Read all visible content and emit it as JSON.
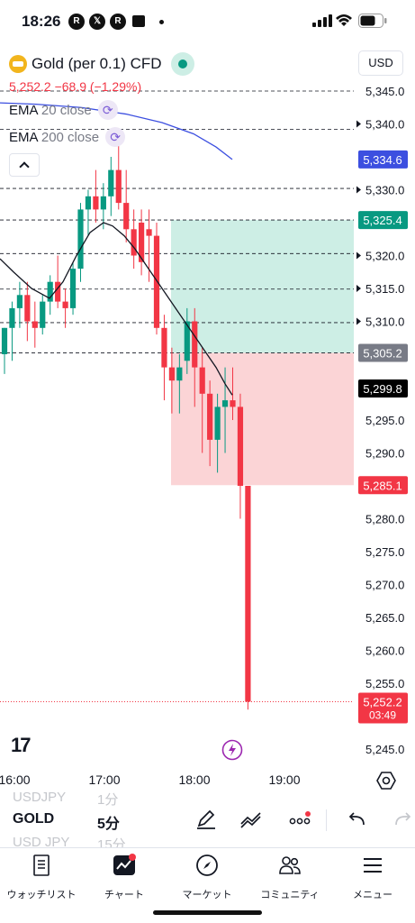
{
  "status_bar": {
    "time": "18:26",
    "icons": [
      "r-app-icon",
      "x-icon",
      "r-app-icon",
      "notification-icon"
    ],
    "right_icons": [
      "signal-icon",
      "wifi-icon",
      "battery-icon"
    ]
  },
  "chart": {
    "symbol_name": "Gold (per 0.1) CFD",
    "price_text": "5,252.2  −68.9 (−1.29%)",
    "currency": "USD",
    "indicators": [
      {
        "name": "EMA",
        "params": "20 close"
      },
      {
        "name": "EMA",
        "params": "200 close"
      }
    ],
    "price_axis": [
      "5,345.0",
      "5,340.0",
      "5,335.0",
      "5,330.0",
      "5,325.0",
      "5,320.0",
      "5,315.0",
      "5,310.0",
      "5,305.0",
      "5,300.0",
      "5,295.0",
      "5,290.0",
      "5,285.0",
      "5,280.0",
      "5,275.0",
      "5,270.0",
      "5,265.0",
      "5,260.0",
      "5,255.0",
      "5,250.0",
      "5,245.0"
    ],
    "price_tags": [
      {
        "label": "5,334.6",
        "color": "#3c4fe0"
      },
      {
        "label": "5,325.4",
        "color": "#089981"
      },
      {
        "label": "5,305.2",
        "color": "#787b86"
      },
      {
        "label": "5,299.8",
        "color": "#000000"
      },
      {
        "label": "5,285.1",
        "color": "#f23645"
      },
      {
        "label": "5,252.2",
        "sub": "03:49",
        "color": "#f23645"
      }
    ],
    "time_axis": [
      "16:00",
      "17:00",
      "18:00",
      "19:00"
    ],
    "colors": {
      "up": "#089981",
      "down": "#f23645",
      "ema20": "#131722",
      "ema200": "#3c4fe0",
      "profit_zone": "#cdeee5",
      "loss_zone": "#fbd4d6"
    }
  },
  "toolbar": {
    "symbols": [
      "USDJPY",
      "GOLD",
      "USD JPY"
    ],
    "timeframes": [
      "1分",
      "5分",
      "15分"
    ],
    "active_symbol": "GOLD",
    "active_timeframe": "5分"
  },
  "bottom_nav": [
    {
      "label": "ウォッチリスト",
      "icon": "watchlist-icon"
    },
    {
      "label": "チャート",
      "icon": "chart-icon"
    },
    {
      "label": "マーケット",
      "icon": "compass-icon"
    },
    {
      "label": "コミュニティ",
      "icon": "community-icon"
    },
    {
      "label": "メニュー",
      "icon": "menu-icon"
    }
  ]
}
